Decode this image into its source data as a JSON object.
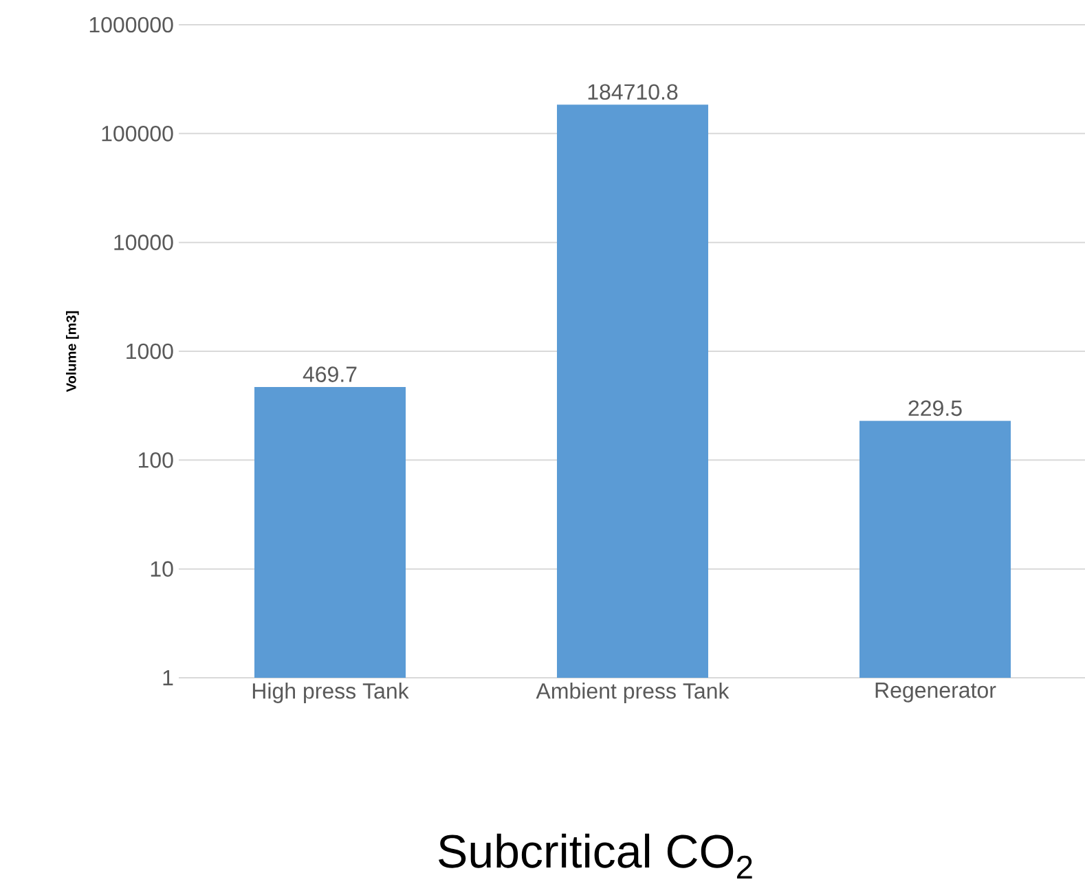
{
  "chart_data": {
    "type": "bar",
    "title": "Subcritical CO$_{2}$",
    "ylabel": "Volume [m3]",
    "categories": [
      "High press Tank",
      "Ambient press Tank",
      "Regenerator"
    ],
    "values": [
      469.7,
      184710.8,
      229.5
    ],
    "value_labels": [
      "469.7",
      "184710.8",
      "229.5"
    ],
    "color": "#5b9bd5",
    "log": "y",
    "ylim": [
      1,
      1000000
    ],
    "yticks": [
      1,
      10,
      100,
      1000,
      10000,
      100000,
      1000000
    ],
    "grid": "y"
  }
}
